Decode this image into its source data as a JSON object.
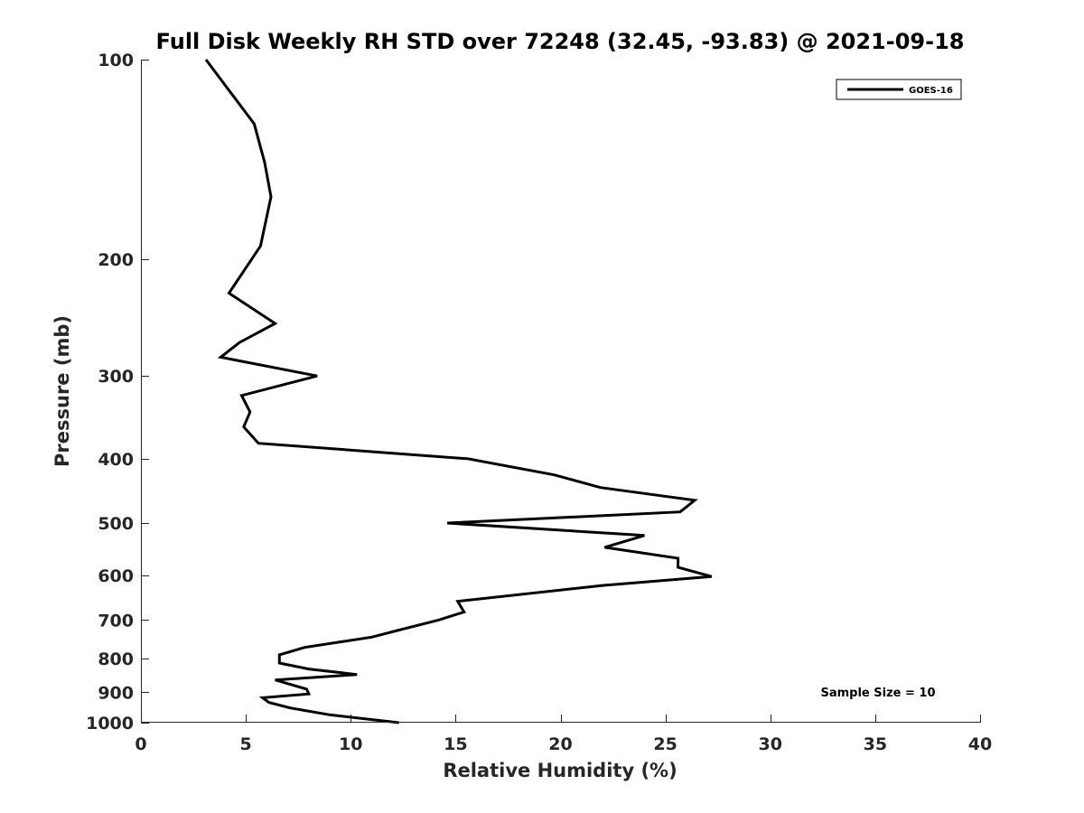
{
  "chart_data": {
    "type": "line",
    "title": "Full Disk Weekly RH STD over 72248 (32.45, -93.83) @ 2021-09-18",
    "xlabel": "Relative Humidity (%)",
    "ylabel": "Pressure (mb)",
    "xlim": [
      0,
      40
    ],
    "ylim": [
      100,
      1000
    ],
    "y_scale": "log",
    "y_reversed": true,
    "grid": false,
    "legend_position": "top-right",
    "x_ticks": [
      0,
      5,
      10,
      15,
      20,
      25,
      30,
      35,
      40
    ],
    "x_tick_labels": [
      "0",
      "5",
      "10",
      "15",
      "20",
      "25",
      "30",
      "35",
      "40"
    ],
    "y_ticks": [
      100,
      200,
      300,
      400,
      500,
      600,
      700,
      800,
      900,
      1000
    ],
    "y_tick_labels": [
      "100",
      "200",
      "300",
      "400",
      "500",
      "600",
      "700",
      "800",
      "900",
      "1000"
    ],
    "series": [
      {
        "name": "GOES-16",
        "color": "#000000",
        "x": [
          3.1,
          5.4,
          5.9,
          6.2,
          5.7,
          4.2,
          6.4,
          4.7,
          3.8,
          8.4,
          4.8,
          5.2,
          4.9,
          5.6,
          15.6,
          19.7,
          21.9,
          26.4,
          25.7,
          14.6,
          24.0,
          22.1,
          25.6,
          25.6,
          27.2,
          22.0,
          15.1,
          15.4,
          14.2,
          12.3,
          11.0,
          7.8,
          6.6,
          6.6,
          8.0,
          10.3,
          6.4,
          7.9,
          8.0,
          5.8,
          6.1,
          7.1,
          9.0,
          12.3
        ],
        "y": [
          100,
          125,
          143,
          161,
          191,
          225,
          250,
          267,
          281,
          300,
          321,
          340,
          358,
          379,
          400,
          423,
          442,
          462,
          481,
          500,
          522,
          544,
          565,
          583,
          602,
          621,
          656,
          681,
          700,
          725,
          743,
          770,
          790,
          813,
          830,
          846,
          862,
          890,
          905,
          917,
          932,
          950,
          973,
          1000
        ]
      }
    ],
    "annotations": [
      {
        "text": "Sample Size = 10"
      }
    ]
  }
}
